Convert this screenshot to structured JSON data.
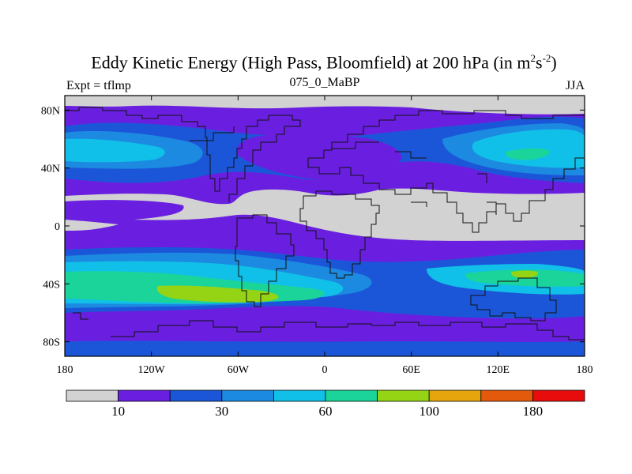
{
  "title_main": "Eddy Kinetic Energy (High Pass, Bloomfield) at 200 hPa (in m",
  "title_sup1": "2",
  "title_mid": "s",
  "title_sup2": "-2",
  "title_end": ")",
  "subtitle_left": "Expt = tflmp",
  "subtitle_center": "075_0_MaBP",
  "subtitle_right": "JJA",
  "colors": {
    "grey": "#d2d2d2",
    "violet": "#6a1fe0",
    "blue": "#1c56d8",
    "mid_blue": "#1c8ae0",
    "light_blue": "#10c0e8",
    "green": "#1ad49a",
    "yellow_green": "#94d414",
    "orange": "#e6a50c",
    "red_orange": "#e45a0c",
    "red": "#e80c0c"
  },
  "chart_data": {
    "type": "heatmap",
    "title": "Eddy Kinetic Energy (High Pass, Bloomfield) at 200 hPa (in m2s-2)",
    "xlabel": "",
    "ylabel": "",
    "xlim": [
      -180,
      180
    ],
    "ylim": [
      -90,
      90
    ],
    "x_ticks": [
      {
        "value": -180,
        "label": "180"
      },
      {
        "value": -120,
        "label": "120W"
      },
      {
        "value": -60,
        "label": "60W"
      },
      {
        "value": 0,
        "label": "0"
      },
      {
        "value": 60,
        "label": "60E"
      },
      {
        "value": 120,
        "label": "120E"
      },
      {
        "value": 180,
        "label": "180"
      }
    ],
    "y_ticks": [
      {
        "value": 80,
        "label": "80N"
      },
      {
        "value": 40,
        "label": "40N"
      },
      {
        "value": 0,
        "label": "0"
      },
      {
        "value": -40,
        "label": "40S"
      },
      {
        "value": -80,
        "label": "80S"
      }
    ],
    "colorbar": {
      "boundaries": [
        10,
        20,
        30,
        40,
        60,
        80,
        100,
        140,
        180
      ],
      "labels": [
        {
          "value": 10,
          "label": "10"
        },
        {
          "value": 30,
          "label": "30"
        },
        {
          "value": 60,
          "label": "60"
        },
        {
          "value": 100,
          "label": "100"
        },
        {
          "value": 180,
          "label": "180"
        }
      ],
      "colors": [
        "#d2d2d2",
        "#6a1fe0",
        "#1c56d8",
        "#1c8ae0",
        "#10c0e8",
        "#1ad49a",
        "#94d414",
        "#e6a50c",
        "#e45a0c",
        "#e80c0c"
      ]
    }
  }
}
